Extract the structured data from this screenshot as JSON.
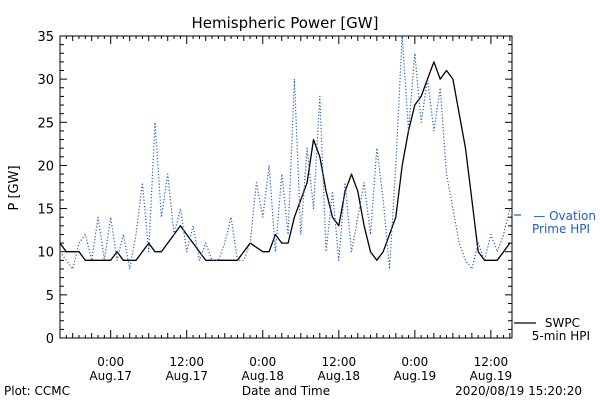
{
  "chart_data": {
    "type": "line",
    "title": "Hemispheric Power [GW]",
    "xlabel": "Date and Time",
    "ylabel": "P [GW]",
    "ylim": [
      0,
      35
    ],
    "yticks": [
      0,
      5,
      10,
      15,
      20,
      25,
      30,
      35
    ],
    "xlim": [
      "2020-08-16T16:00",
      "2020-08-19T15:20"
    ],
    "xticks": [
      {
        "top": "0:00",
        "bottom": "Aug.17",
        "time": "2020-08-17T00:00"
      },
      {
        "top": "12:00",
        "bottom": "Aug.17",
        "time": "2020-08-17T12:00"
      },
      {
        "top": "0:00",
        "bottom": "Aug.18",
        "time": "2020-08-18T00:00"
      },
      {
        "top": "12:00",
        "bottom": "Aug.18",
        "time": "2020-08-18T12:00"
      },
      {
        "top": "0:00",
        "bottom": "Aug.19",
        "time": "2020-08-19T00:00"
      },
      {
        "top": "12:00",
        "bottom": "Aug.19",
        "time": "2020-08-19T12:00"
      }
    ],
    "grid": false,
    "legend_position": "right",
    "series": [
      {
        "name": "SWPC 5-min HPI",
        "legend_lines": [
          "SWPC",
          "5-min HPI"
        ],
        "color": "#000000",
        "style": "solid",
        "points": [
          [
            "2020-08-16T16:00",
            11
          ],
          [
            "2020-08-16T17:00",
            10
          ],
          [
            "2020-08-16T19:00",
            10
          ],
          [
            "2020-08-16T20:00",
            9
          ],
          [
            "2020-08-16T22:00",
            9
          ],
          [
            "2020-08-17T00:00",
            9
          ],
          [
            "2020-08-17T01:00",
            10
          ],
          [
            "2020-08-17T02:00",
            9
          ],
          [
            "2020-08-17T04:00",
            9
          ],
          [
            "2020-08-17T05:00",
            10
          ],
          [
            "2020-08-17T06:00",
            11
          ],
          [
            "2020-08-17T07:00",
            10
          ],
          [
            "2020-08-17T08:00",
            10
          ],
          [
            "2020-08-17T09:00",
            11
          ],
          [
            "2020-08-17T10:00",
            12
          ],
          [
            "2020-08-17T11:00",
            13
          ],
          [
            "2020-08-17T12:00",
            12
          ],
          [
            "2020-08-17T13:00",
            11
          ],
          [
            "2020-08-17T14:00",
            10
          ],
          [
            "2020-08-17T15:00",
            9
          ],
          [
            "2020-08-17T20:00",
            9
          ],
          [
            "2020-08-17T21:00",
            10
          ],
          [
            "2020-08-17T22:00",
            11
          ],
          [
            "2020-08-18T00:00",
            10
          ],
          [
            "2020-08-18T01:00",
            10
          ],
          [
            "2020-08-18T02:00",
            12
          ],
          [
            "2020-08-18T03:00",
            11
          ],
          [
            "2020-08-18T04:00",
            11
          ],
          [
            "2020-08-18T05:00",
            14
          ],
          [
            "2020-08-18T07:00",
            18
          ],
          [
            "2020-08-18T08:00",
            23
          ],
          [
            "2020-08-18T09:00",
            21
          ],
          [
            "2020-08-18T10:00",
            17
          ],
          [
            "2020-08-18T11:00",
            14
          ],
          [
            "2020-08-18T12:00",
            13
          ],
          [
            "2020-08-18T13:00",
            17
          ],
          [
            "2020-08-18T14:00",
            19
          ],
          [
            "2020-08-18T15:00",
            17
          ],
          [
            "2020-08-18T16:00",
            13
          ],
          [
            "2020-08-18T17:00",
            10
          ],
          [
            "2020-08-18T18:00",
            9
          ],
          [
            "2020-08-18T19:00",
            10
          ],
          [
            "2020-08-18T20:00",
            12
          ],
          [
            "2020-08-18T21:00",
            14
          ],
          [
            "2020-08-18T22:00",
            20
          ],
          [
            "2020-08-18T23:00",
            24
          ],
          [
            "2020-08-19T00:00",
            27
          ],
          [
            "2020-08-19T01:00",
            28
          ],
          [
            "2020-08-19T02:00",
            30
          ],
          [
            "2020-08-19T03:00",
            32
          ],
          [
            "2020-08-19T04:00",
            30
          ],
          [
            "2020-08-19T05:00",
            31
          ],
          [
            "2020-08-19T06:00",
            30
          ],
          [
            "2020-08-19T07:00",
            26
          ],
          [
            "2020-08-19T08:00",
            22
          ],
          [
            "2020-08-19T09:00",
            16
          ],
          [
            "2020-08-19T10:00",
            10
          ],
          [
            "2020-08-19T11:00",
            9
          ],
          [
            "2020-08-19T13:00",
            9
          ],
          [
            "2020-08-19T14:00",
            10
          ],
          [
            "2020-08-19T15:00",
            11
          ]
        ]
      },
      {
        "name": "Ovation Prime HPI",
        "legend_lines": [
          "— Ovation",
          "Prime HPI"
        ],
        "color": "#1f5fbf",
        "style": "dotted",
        "points": [
          [
            "2020-08-16T16:00",
            10
          ],
          [
            "2020-08-16T17:00",
            9
          ],
          [
            "2020-08-16T18:00",
            8
          ],
          [
            "2020-08-16T19:00",
            11
          ],
          [
            "2020-08-16T20:00",
            12
          ],
          [
            "2020-08-16T21:00",
            9
          ],
          [
            "2020-08-16T22:00",
            14
          ],
          [
            "2020-08-16T23:00",
            9
          ],
          [
            "2020-08-17T00:00",
            14
          ],
          [
            "2020-08-17T01:00",
            9
          ],
          [
            "2020-08-17T02:00",
            12
          ],
          [
            "2020-08-17T03:00",
            8
          ],
          [
            "2020-08-17T04:00",
            12
          ],
          [
            "2020-08-17T05:00",
            18
          ],
          [
            "2020-08-17T06:00",
            10
          ],
          [
            "2020-08-17T07:00",
            25
          ],
          [
            "2020-08-17T08:00",
            14
          ],
          [
            "2020-08-17T09:00",
            19
          ],
          [
            "2020-08-17T10:00",
            12
          ],
          [
            "2020-08-17T11:00",
            15
          ],
          [
            "2020-08-17T12:00",
            10
          ],
          [
            "2020-08-17T13:00",
            13
          ],
          [
            "2020-08-17T14:00",
            9
          ],
          [
            "2020-08-17T15:00",
            11
          ],
          [
            "2020-08-17T16:00",
            9
          ],
          [
            "2020-08-17T17:00",
            9
          ],
          [
            "2020-08-17T18:00",
            11
          ],
          [
            "2020-08-17T19:00",
            14
          ],
          [
            "2020-08-17T20:00",
            9
          ],
          [
            "2020-08-17T21:00",
            9
          ],
          [
            "2020-08-17T22:00",
            11
          ],
          [
            "2020-08-17T23:00",
            18
          ],
          [
            "2020-08-18T00:00",
            14
          ],
          [
            "2020-08-18T01:00",
            20
          ],
          [
            "2020-08-18T02:00",
            10
          ],
          [
            "2020-08-18T03:00",
            19
          ],
          [
            "2020-08-18T04:00",
            12
          ],
          [
            "2020-08-18T05:00",
            30
          ],
          [
            "2020-08-18T06:00",
            12
          ],
          [
            "2020-08-18T07:00",
            22
          ],
          [
            "2020-08-18T08:00",
            15
          ],
          [
            "2020-08-18T09:00",
            28
          ],
          [
            "2020-08-18T10:00",
            10
          ],
          [
            "2020-08-18T11:00",
            17
          ],
          [
            "2020-08-18T12:00",
            9
          ],
          [
            "2020-08-18T13:00",
            18
          ],
          [
            "2020-08-18T14:00",
            10
          ],
          [
            "2020-08-18T15:00",
            14
          ],
          [
            "2020-08-18T16:00",
            18
          ],
          [
            "2020-08-18T17:00",
            12
          ],
          [
            "2020-08-18T18:00",
            22
          ],
          [
            "2020-08-18T19:00",
            16
          ],
          [
            "2020-08-18T20:00",
            8
          ],
          [
            "2020-08-18T21:00",
            20
          ],
          [
            "2020-08-18T22:00",
            35
          ],
          [
            "2020-08-18T23:00",
            24
          ],
          [
            "2020-08-19T00:00",
            33
          ],
          [
            "2020-08-19T01:00",
            25
          ],
          [
            "2020-08-19T02:00",
            30
          ],
          [
            "2020-08-19T03:00",
            24
          ],
          [
            "2020-08-19T04:00",
            29
          ],
          [
            "2020-08-19T05:00",
            19
          ],
          [
            "2020-08-19T06:00",
            15
          ],
          [
            "2020-08-19T07:00",
            11
          ],
          [
            "2020-08-19T08:00",
            9
          ],
          [
            "2020-08-19T09:00",
            8
          ],
          [
            "2020-08-19T10:00",
            11
          ],
          [
            "2020-08-19T11:00",
            9
          ],
          [
            "2020-08-19T12:00",
            12
          ],
          [
            "2020-08-19T13:00",
            10
          ],
          [
            "2020-08-19T14:00",
            12
          ],
          [
            "2020-08-19T15:00",
            15
          ]
        ]
      }
    ]
  },
  "footer": {
    "left": "Plot: CCMC",
    "right": "2020/08/19 15:20:20"
  }
}
